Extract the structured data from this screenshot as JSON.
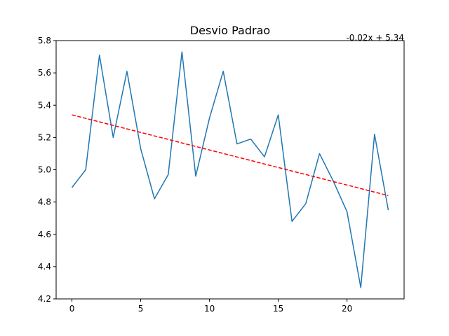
{
  "chart_data": {
    "type": "line",
    "title": "Desvio Padrao",
    "xlabel": "",
    "ylabel": "",
    "xlim": [
      -1.15,
      24.15
    ],
    "ylim": [
      4.2,
      5.8
    ],
    "xticks": [
      0,
      5,
      10,
      15,
      20
    ],
    "yticks": [
      4.2,
      4.4,
      4.6,
      4.8,
      5.0,
      5.2,
      5.4,
      5.6,
      5.8
    ],
    "grid": false,
    "series": [
      {
        "x": [
          0,
          1,
          2,
          3,
          4,
          5,
          6,
          7,
          8,
          9,
          10,
          11,
          12,
          13,
          14,
          15,
          16,
          17,
          18,
          19,
          20,
          21,
          22,
          23
        ],
        "values": [
          4.89,
          5.0,
          5.71,
          5.2,
          5.61,
          5.13,
          4.82,
          4.97,
          5.73,
          4.96,
          5.32,
          5.61,
          5.16,
          5.19,
          5.08,
          5.34,
          4.68,
          4.79,
          5.1,
          4.93,
          4.74,
          4.27,
          5.22,
          4.75
        ],
        "color": "#1f77b4",
        "style": "solid"
      },
      {
        "x": [
          0,
          23
        ],
        "values": [
          5.34,
          4.84
        ],
        "color": "#ff0000",
        "style": "dashed"
      }
    ],
    "annotation": "-0.02x + 5.34"
  }
}
